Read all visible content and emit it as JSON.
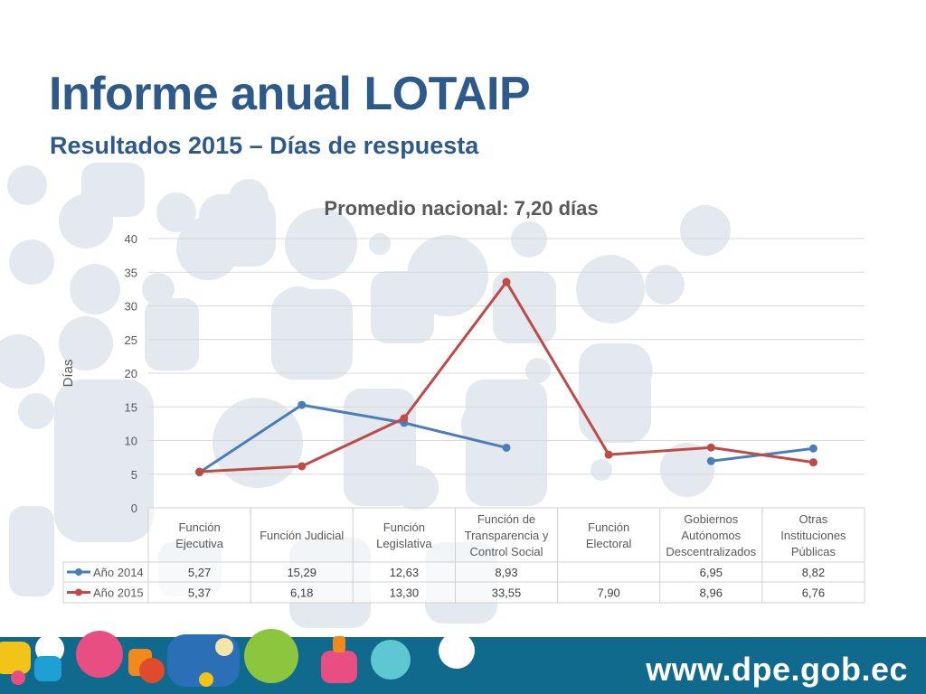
{
  "slide": {
    "title": "Informe anual LOTAIP",
    "subtitle": "Resultados 2015 – Días de respuesta",
    "footer_url": "www.dpe.gob.ec"
  },
  "colors": {
    "title": "#2e5a8a",
    "series_2014": "#4a7ebb",
    "series_2015": "#be4b48",
    "footer_band": "#0f6a8e"
  },
  "chart_data": {
    "type": "line",
    "title": "Promedio nacional: 7,20 días",
    "ylabel": "Días",
    "xlabel": "",
    "ylim": [
      0,
      40
    ],
    "yticks": [
      0,
      5,
      10,
      15,
      20,
      25,
      30,
      35,
      40
    ],
    "grid": true,
    "legend": "data-table",
    "categories": [
      "Función Ejecutiva",
      "Función Judicial",
      "Función Legislativa",
      "Función de Transparencia y Control Social",
      "Función Electoral",
      "Gobiernos Autónomos Descentralizados",
      "Otras Instituciones Públicas"
    ],
    "series": [
      {
        "name": "Año 2014",
        "values": [
          5.27,
          15.29,
          12.63,
          8.93,
          null,
          6.95,
          8.82
        ],
        "labels": [
          "5,27",
          "15,29",
          "12,63",
          "8,93",
          "",
          "6,95",
          "8,82"
        ]
      },
      {
        "name": "Año 2015",
        "values": [
          5.37,
          6.18,
          13.3,
          33.55,
          7.9,
          8.96,
          6.76
        ],
        "labels": [
          "5,37",
          "6,18",
          "13,30",
          "33,55",
          "7,90",
          "8,96",
          "6,76"
        ]
      }
    ]
  }
}
